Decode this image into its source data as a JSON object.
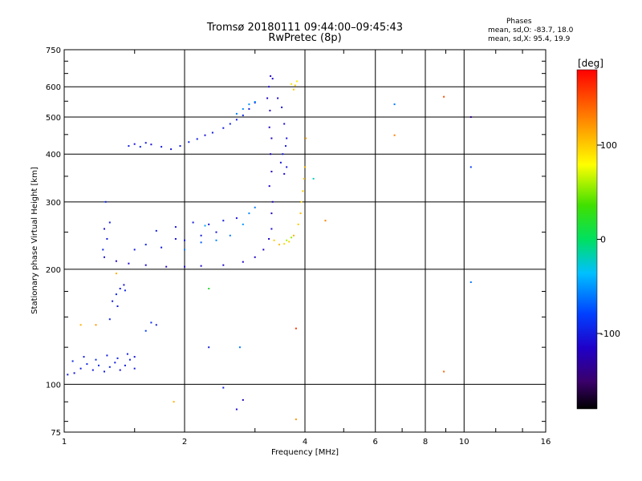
{
  "header": {
    "title_line1": "Tromsø 20180111 09:44:00–09:45:43",
    "title_line2": "RwPretec (8p)"
  },
  "phase_box": {
    "title": "Phases",
    "line_o": "mean, sd,O: -83.7, 18.0",
    "line_x": "mean, sd,X:  95.4, 19.9"
  },
  "chart_data": {
    "type": "scatter",
    "xlabel": "Frequency [MHz]",
    "ylabel": "Stationary phase Virtual Height [km]",
    "x_scale": "log",
    "y_scale": "log",
    "xlim": [
      1,
      16
    ],
    "ylim": [
      75,
      750
    ],
    "x_ticks": [
      1,
      2,
      4,
      6,
      8,
      10,
      16
    ],
    "x_tick_labels": [
      "1",
      "2",
      "4",
      "6",
      "8",
      "10",
      "16"
    ],
    "y_ticks": [
      75,
      100,
      200,
      300,
      400,
      500,
      600,
      750
    ],
    "y_tick_labels": [
      "75",
      "100",
      "200",
      "300",
      "400",
      "500",
      "600",
      "750"
    ],
    "grid": true,
    "colorbar": {
      "label": "[deg]",
      "range": [
        -180,
        180
      ],
      "ticks": [
        100,
        0,
        -100
      ],
      "tick_labels": [
        "100",
        "0",
        "-100"
      ]
    },
    "series": [
      {
        "points": [
          [
            1.02,
            106,
            -100
          ],
          [
            1.06,
            107,
            -105
          ],
          [
            1.1,
            110,
            -100
          ],
          [
            1.14,
            113,
            -95
          ],
          [
            1.18,
            109,
            -100
          ],
          [
            1.22,
            112,
            -90
          ],
          [
            1.26,
            108,
            -100
          ],
          [
            1.3,
            111,
            -95
          ],
          [
            1.34,
            114,
            -100
          ],
          [
            1.38,
            109,
            -105
          ],
          [
            1.42,
            112,
            -100
          ],
          [
            1.46,
            116,
            -95
          ],
          [
            1.5,
            110,
            -100
          ],
          [
            1.05,
            115,
            -95
          ],
          [
            1.12,
            118,
            -100
          ],
          [
            1.2,
            116,
            -90
          ],
          [
            1.28,
            119,
            -100
          ],
          [
            1.36,
            117,
            -95
          ],
          [
            1.44,
            120,
            -100
          ],
          [
            1.5,
            118,
            -105
          ],
          [
            1.32,
            165,
            -100
          ],
          [
            1.35,
            172,
            -95
          ],
          [
            1.38,
            178,
            -100
          ],
          [
            1.41,
            182,
            -105
          ],
          [
            1.36,
            160,
            -100
          ],
          [
            1.42,
            176,
            -95
          ],
          [
            1.25,
            225,
            -95
          ],
          [
            1.28,
            240,
            -100
          ],
          [
            1.26,
            255,
            -105
          ],
          [
            1.27,
            300,
            -95
          ],
          [
            1.3,
            265,
            -100
          ],
          [
            1.26,
            215,
            -105
          ],
          [
            1.35,
            210,
            -110
          ],
          [
            1.45,
            207,
            -110
          ],
          [
            1.6,
            205,
            -110
          ],
          [
            1.8,
            203,
            -110
          ],
          [
            2.0,
            203,
            -110
          ],
          [
            2.2,
            204,
            -110
          ],
          [
            2.5,
            205,
            -110
          ],
          [
            2.8,
            209,
            -112
          ],
          [
            3.0,
            215,
            -115
          ],
          [
            3.15,
            225,
            -118
          ],
          [
            3.25,
            240,
            -115
          ],
          [
            3.3,
            255,
            -110
          ],
          [
            1.5,
            225,
            -100
          ],
          [
            1.6,
            232,
            -95
          ],
          [
            1.75,
            228,
            -100
          ],
          [
            1.9,
            240,
            -105
          ],
          [
            2.0,
            238,
            -100
          ],
          [
            2.2,
            245,
            -100
          ],
          [
            2.4,
            250,
            -105
          ],
          [
            1.7,
            252,
            -100
          ],
          [
            1.9,
            258,
            -105
          ],
          [
            2.1,
            265,
            -100
          ],
          [
            2.3,
            262,
            -105
          ],
          [
            2.5,
            268,
            -100
          ],
          [
            2.7,
            272,
            -105
          ],
          [
            2.0,
            225,
            -60
          ],
          [
            2.2,
            235,
            -70
          ],
          [
            2.4,
            238,
            -55
          ],
          [
            2.6,
            245,
            -60
          ],
          [
            2.8,
            262,
            -50
          ],
          [
            2.9,
            280,
            -55
          ],
          [
            3.0,
            290,
            -60
          ],
          [
            2.25,
            260,
            -45
          ],
          [
            1.45,
            420,
            -100
          ],
          [
            1.5,
            425,
            -105
          ],
          [
            1.55,
            418,
            -95
          ],
          [
            1.6,
            428,
            -100
          ],
          [
            1.65,
            424,
            -105
          ],
          [
            1.75,
            418,
            -100
          ],
          [
            1.85,
            412,
            -105
          ],
          [
            1.95,
            420,
            -100
          ],
          [
            2.05,
            430,
            -95
          ],
          [
            2.15,
            438,
            -100
          ],
          [
            2.25,
            448,
            -105
          ],
          [
            2.35,
            455,
            -100
          ],
          [
            2.5,
            468,
            -100
          ],
          [
            2.6,
            480,
            -95
          ],
          [
            2.7,
            492,
            -100
          ],
          [
            2.8,
            505,
            -95
          ],
          [
            2.9,
            525,
            -100
          ],
          [
            3.0,
            545,
            -95
          ],
          [
            2.7,
            510,
            -60
          ],
          [
            2.8,
            525,
            -55
          ],
          [
            2.9,
            540,
            -50
          ],
          [
            3.0,
            548,
            -55
          ],
          [
            3.22,
            560,
            -115
          ],
          [
            3.25,
            600,
            -110
          ],
          [
            3.28,
            640,
            -115
          ],
          [
            3.32,
            630,
            -110
          ],
          [
            3.27,
            520,
            -120
          ],
          [
            3.26,
            470,
            -115
          ],
          [
            3.3,
            440,
            -120
          ],
          [
            3.28,
            400,
            -118
          ],
          [
            3.3,
            360,
            -120
          ],
          [
            3.26,
            330,
            -115
          ],
          [
            3.32,
            300,
            -118
          ],
          [
            3.3,
            280,
            -120
          ],
          [
            3.42,
            560,
            -110
          ],
          [
            3.5,
            530,
            -105
          ],
          [
            3.55,
            480,
            -110
          ],
          [
            3.6,
            440,
            -105
          ],
          [
            3.52,
            400,
            -100
          ],
          [
            3.48,
            380,
            -105
          ],
          [
            3.58,
            420,
            -100
          ],
          [
            3.6,
            370,
            -105
          ],
          [
            3.55,
            355,
            -110
          ],
          [
            3.7,
            610,
            90
          ],
          [
            3.78,
            605,
            95
          ],
          [
            3.82,
            620,
            85
          ],
          [
            3.75,
            590,
            100
          ],
          [
            3.35,
            238,
            100
          ],
          [
            3.45,
            232,
            105
          ],
          [
            3.55,
            233,
            95
          ],
          [
            3.65,
            236,
            100
          ],
          [
            3.75,
            245,
            110
          ],
          [
            3.85,
            262,
            100
          ],
          [
            3.9,
            280,
            105
          ],
          [
            3.92,
            300,
            95
          ],
          [
            3.95,
            320,
            100
          ],
          [
            3.98,
            345,
            105
          ],
          [
            4.0,
            370,
            110
          ],
          [
            3.6,
            238,
            60
          ],
          [
            3.7,
            242,
            55
          ],
          [
            6.7,
            540,
            -60
          ],
          [
            6.7,
            448,
            130
          ],
          [
            8.9,
            565,
            150
          ],
          [
            8.9,
            108,
            140
          ],
          [
            10.4,
            500,
            -140
          ],
          [
            10.4,
            370,
            -80
          ],
          [
            10.4,
            185,
            -60
          ],
          [
            3.8,
            140,
            160
          ],
          [
            4.5,
            268,
            130
          ],
          [
            4.2,
            345,
            -20
          ],
          [
            4.02,
            440,
            120
          ],
          [
            1.88,
            90,
            110
          ],
          [
            2.5,
            98,
            -100
          ],
          [
            2.7,
            86,
            -110
          ],
          [
            2.8,
            91,
            -120
          ],
          [
            3.8,
            81,
            120
          ],
          [
            1.1,
            143,
            110
          ],
          [
            1.2,
            143,
            120
          ],
          [
            1.6,
            138,
            -80
          ],
          [
            1.65,
            145,
            -90
          ],
          [
            1.7,
            143,
            -100
          ],
          [
            2.3,
            125,
            -100
          ],
          [
            2.75,
            125,
            -60
          ],
          [
            2.3,
            178,
            20
          ],
          [
            1.35,
            195,
            110
          ],
          [
            1.3,
            148,
            -95
          ]
        ]
      }
    ]
  }
}
